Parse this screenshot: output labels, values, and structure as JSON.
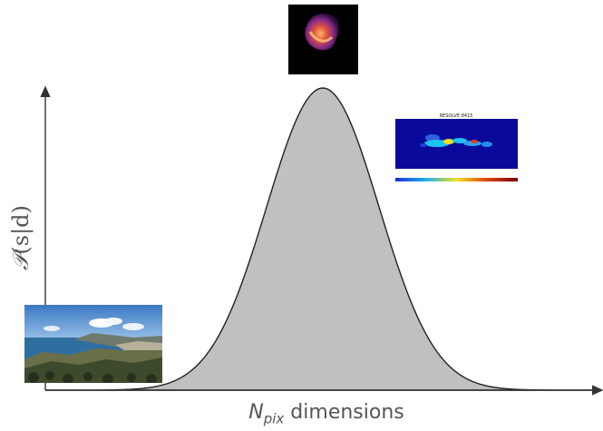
{
  "diagram": {
    "y_axis_label": {
      "symbol": "𝒫",
      "rest": "(s|d)"
    },
    "x_axis_label": {
      "symbol": "N",
      "subscript": "pix",
      "suffix": " dimensions"
    },
    "curve": {
      "shape": "gaussian",
      "fill_color": "#c0c0c0",
      "stroke_color": "#222222"
    },
    "axis_color": "#333333",
    "thumbnails": [
      {
        "name": "landscape-photo",
        "position": "low dimensions"
      },
      {
        "name": "nebula-image",
        "position": "peak"
      },
      {
        "name": "radio-map-image",
        "position": "high dimensions",
        "title": "RESOLVE 8415"
      }
    ]
  }
}
